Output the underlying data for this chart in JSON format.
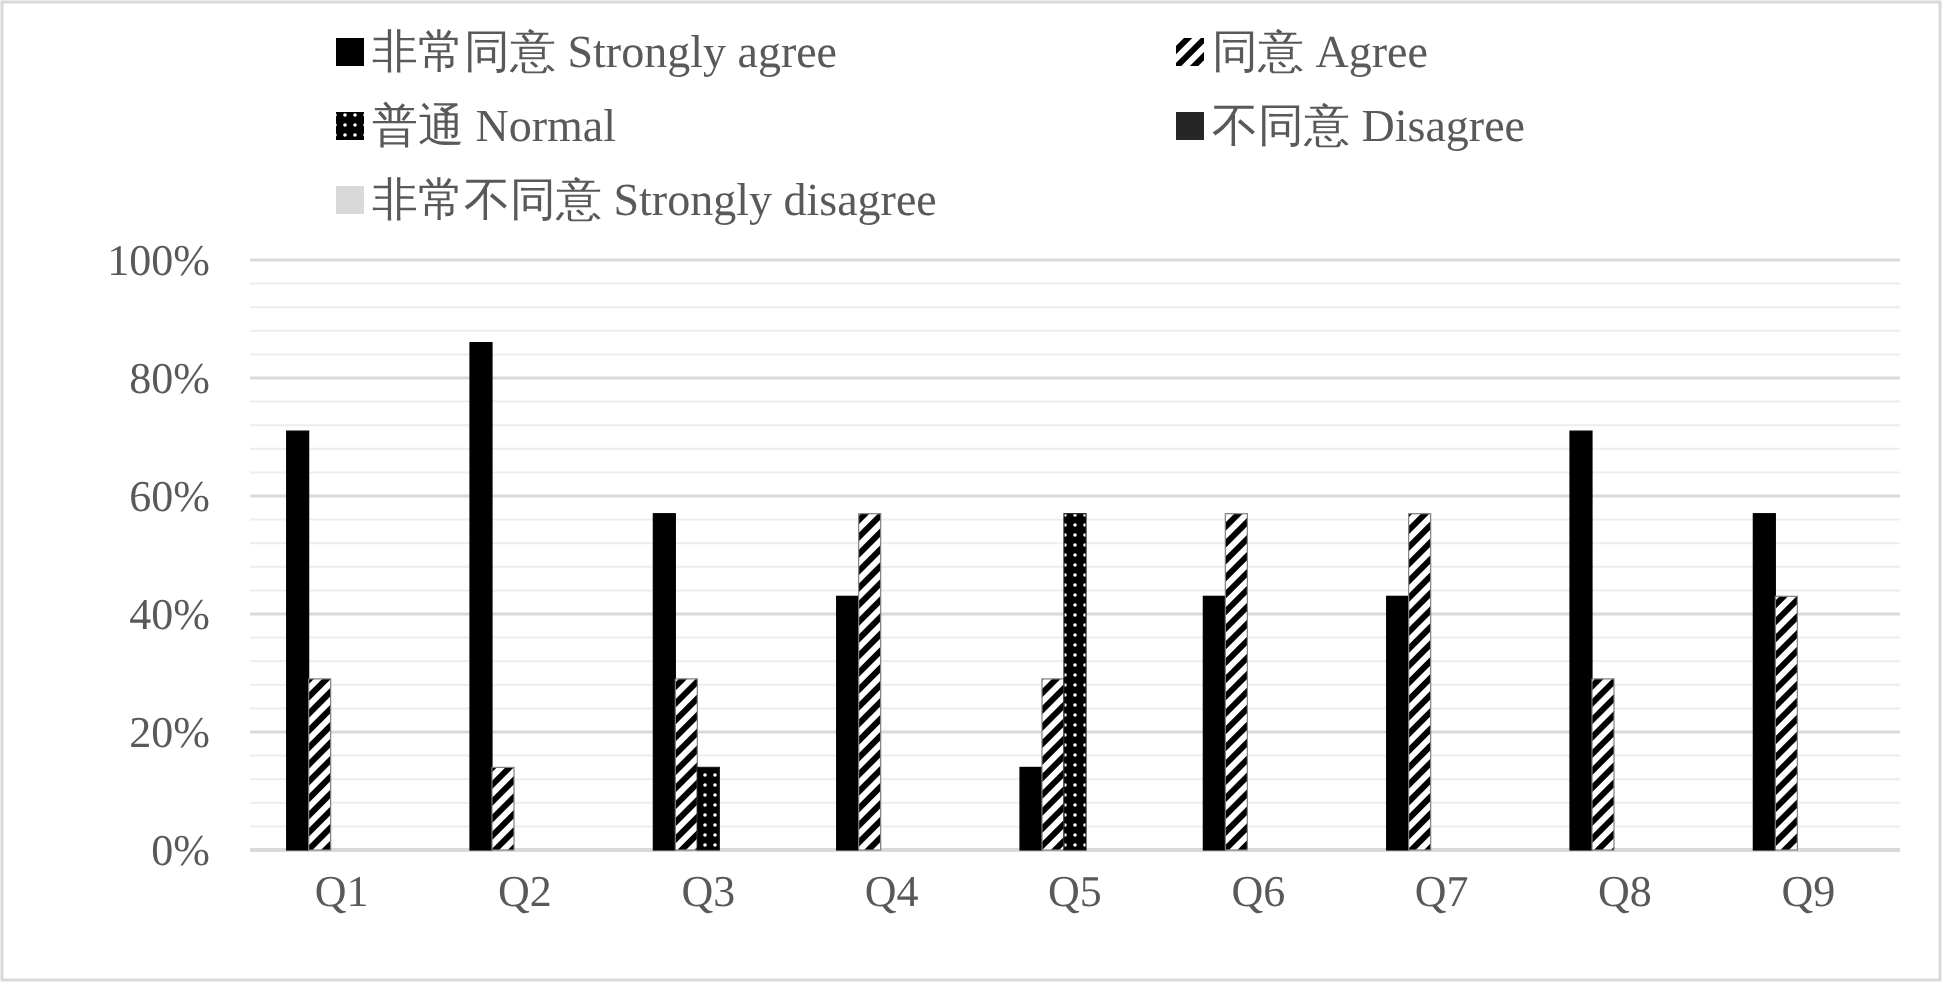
{
  "chart_data": {
    "type": "bar",
    "categories": [
      "Q1",
      "Q2",
      "Q3",
      "Q4",
      "Q5",
      "Q6",
      "Q7",
      "Q8",
      "Q9"
    ],
    "series": [
      {
        "name": "非常同意 Strongly agree",
        "color": "#000000",
        "values": [
          71,
          86,
          57,
          43,
          14,
          43,
          43,
          71,
          57
        ]
      },
      {
        "name": "同意 Agree",
        "color": "#7f7f7f",
        "values": [
          29,
          14,
          29,
          57,
          29,
          57,
          57,
          29,
          43
        ]
      },
      {
        "name": "普通 Normal",
        "color": "#1a1a1a",
        "values": [
          0,
          0,
          14,
          0,
          57,
          0,
          0,
          0,
          0
        ]
      },
      {
        "name": "不同意 Disagree",
        "color": "#262626",
        "values": [
          0,
          0,
          0,
          0,
          0,
          0,
          0,
          0,
          0
        ]
      },
      {
        "name": "非常不同意 Strongly disagree",
        "color": "#d9d9d9",
        "values": [
          0,
          0,
          0,
          0,
          0,
          0,
          0,
          0,
          0
        ]
      }
    ],
    "ylim": [
      0,
      100
    ],
    "yticks": [
      {
        "value": 0,
        "label": "0%"
      },
      {
        "value": 4,
        "label": null
      },
      {
        "value": 8,
        "label": null
      },
      {
        "value": 12,
        "label": null
      },
      {
        "value": 16,
        "label": null
      },
      {
        "value": 20,
        "label": "20%"
      },
      {
        "value": 24,
        "label": null
      },
      {
        "value": 28,
        "label": null
      },
      {
        "value": 32,
        "label": null
      },
      {
        "value": 36,
        "label": null
      },
      {
        "value": 40,
        "label": "40%"
      },
      {
        "value": 44,
        "label": null
      },
      {
        "value": 48,
        "label": null
      },
      {
        "value": 52,
        "label": null
      },
      {
        "value": 56,
        "label": null
      },
      {
        "value": 60,
        "label": "60%"
      },
      {
        "value": 64,
        "label": null
      },
      {
        "value": 68,
        "label": null
      },
      {
        "value": 72,
        "label": null
      },
      {
        "value": 76,
        "label": null
      },
      {
        "value": 80,
        "label": "80%"
      },
      {
        "value": 84,
        "label": null
      },
      {
        "value": 88,
        "label": null
      },
      {
        "value": 92,
        "label": null
      },
      {
        "value": 96,
        "label": null
      },
      {
        "value": 100,
        "label": "100%"
      }
    ],
    "grid": "y",
    "legend": "top"
  }
}
